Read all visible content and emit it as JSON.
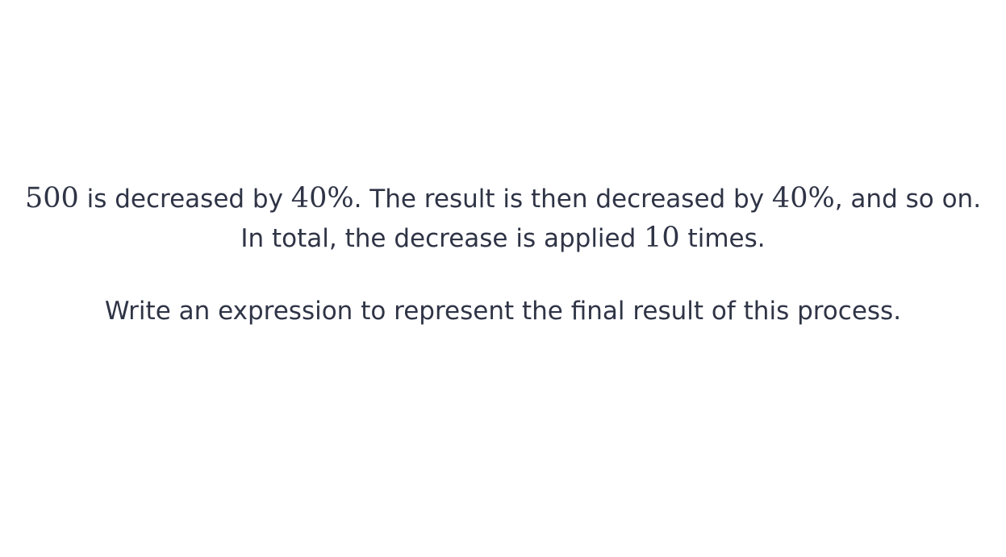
{
  "question": {
    "line1": {
      "start_value": "500",
      "text_a": " is decreased by ",
      "percent_a": "40%",
      "text_b": ". The result is then decreased by ",
      "percent_b": "40%",
      "text_c": ", and so on."
    },
    "line2": {
      "text_a": "In total, the decrease is applied ",
      "times": "10",
      "text_b": " times."
    },
    "prompt": "Write an expression to represent the final result of this process."
  }
}
